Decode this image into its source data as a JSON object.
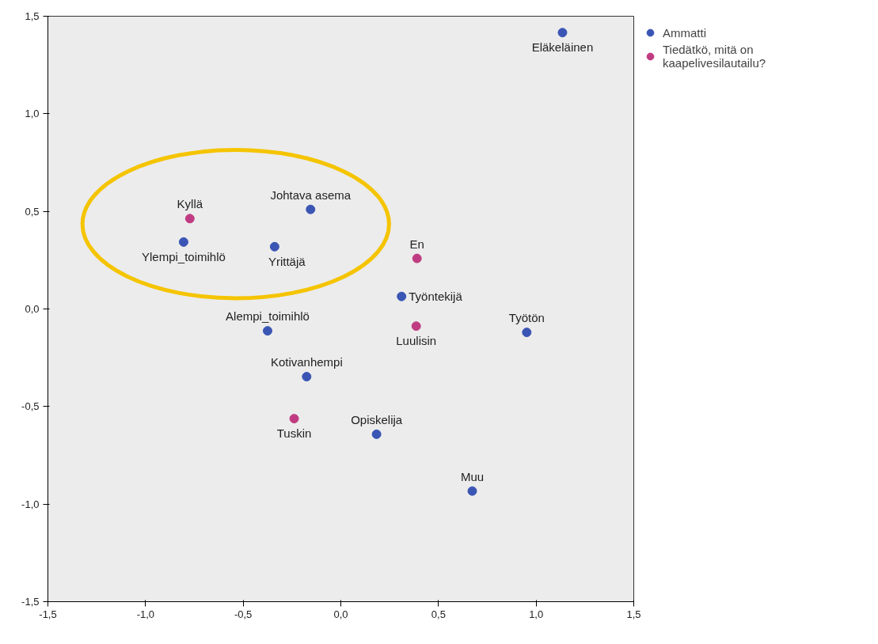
{
  "chart_data": {
    "type": "scatter",
    "series": [
      {
        "name": "Ammatti",
        "color": "#3a55b4",
        "x": [
          1.135,
          -0.155,
          -0.805,
          -0.339,
          0.311,
          0.952,
          -0.375,
          -0.175,
          0.183,
          0.673
        ],
        "values": [
          1.416,
          0.51,
          0.343,
          0.319,
          0.064,
          -0.12,
          -0.112,
          -0.347,
          -0.642,
          -0.933
        ]
      },
      {
        "name": "Tiedätkö, mitä on kaapelivesilautailu?",
        "color": "#c03c82",
        "x": [
          -0.773,
          0.39,
          0.386,
          -0.239
        ],
        "values": [
          0.463,
          0.259,
          -0.088,
          -0.562
        ]
      }
    ],
    "annotations": [
      {
        "text": "Eläkeläinen",
        "x": 1.135,
        "y": 1.416
      },
      {
        "text": "Johtava asema",
        "x": -0.155,
        "y": 0.51
      },
      {
        "text": "Ylempi_toimihlö",
        "x": -0.805,
        "y": 0.343
      },
      {
        "text": "Yrittäjä",
        "x": -0.339,
        "y": 0.319
      },
      {
        "text": "Työntekijä",
        "x": 0.311,
        "y": 0.064
      },
      {
        "text": "Työtön",
        "x": 0.952,
        "y": -0.12
      },
      {
        "text": "Alempi_toimihlö",
        "x": -0.375,
        "y": -0.112
      },
      {
        "text": "Kotivanhempi",
        "x": -0.175,
        "y": -0.347
      },
      {
        "text": "Opiskelija",
        "x": 0.183,
        "y": -0.642
      },
      {
        "text": "Muu",
        "x": 0.673,
        "y": -0.933
      },
      {
        "text": "Kyllä",
        "x": -0.773,
        "y": 0.463
      },
      {
        "text": "En",
        "x": 0.39,
        "y": 0.259
      },
      {
        "text": "Luulisin",
        "x": 0.386,
        "y": -0.088
      },
      {
        "text": "Tuskin",
        "x": -0.239,
        "y": -0.562
      }
    ],
    "xlim": [
      -1.5,
      1.5
    ],
    "ylim": [
      -1.5,
      1.5
    ],
    "xticks": [
      {
        "value": -1.5,
        "label": "-1,5"
      },
      {
        "value": -1.0,
        "label": "-1,0"
      },
      {
        "value": -0.5,
        "label": "-0,5"
      },
      {
        "value": 0.0,
        "label": "0,0"
      },
      {
        "value": 0.5,
        "label": "0,5"
      },
      {
        "value": 1.0,
        "label": "1,0"
      },
      {
        "value": 1.5,
        "label": "1,5"
      }
    ],
    "yticks": [
      {
        "value": -1.5,
        "label": "-1,5"
      },
      {
        "value": -1.0,
        "label": "-1,0"
      },
      {
        "value": -0.5,
        "label": "-0,5"
      },
      {
        "value": 0.0,
        "label": "0,0"
      },
      {
        "value": 0.5,
        "label": "0,5"
      },
      {
        "value": 1.0,
        "label": "1,0"
      },
      {
        "value": 1.5,
        "label": "1,5"
      }
    ],
    "grid": false,
    "legend": "top right",
    "marker": "circle"
  }
}
